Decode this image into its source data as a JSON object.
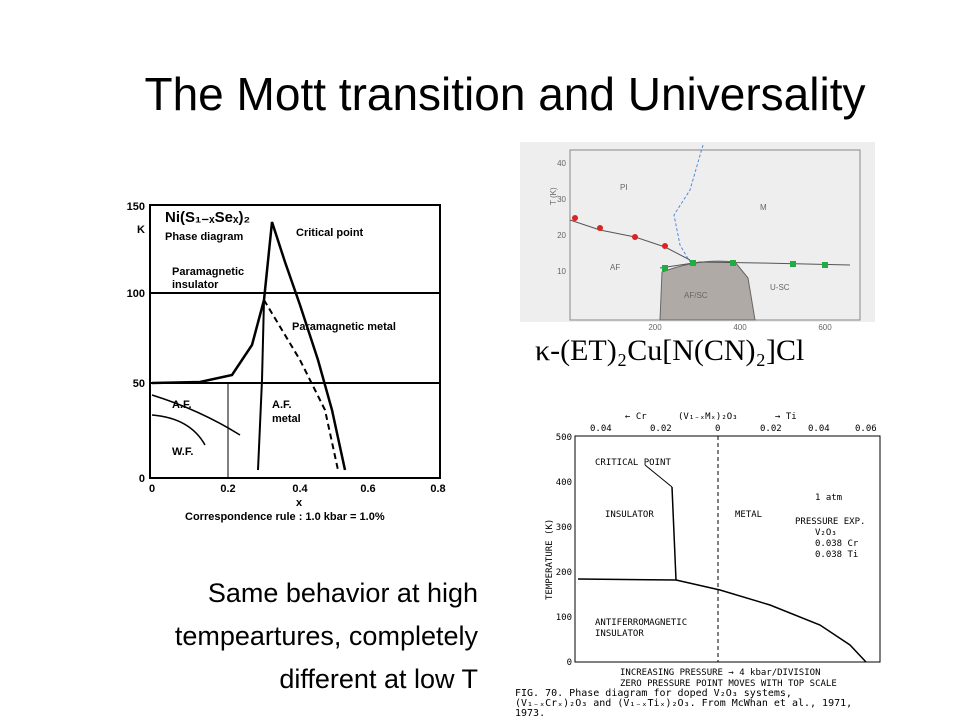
{
  "title": "The  Mott transition  and Universality",
  "caption": [
    "Same behavior at high",
    "tempeartures, completely",
    "different at low T"
  ],
  "formula": "κ-(ET)₂Cu[N(CN)₂]Cl",
  "nis2": {
    "heading": "Ni(S₁₋ₓSeₓ)₂",
    "subheading": "Phase diagram",
    "y_unit": "K",
    "yticks": [
      "0",
      "50",
      "100",
      "150"
    ],
    "xticks": [
      "0",
      "0.2",
      "0.4",
      "0.6",
      "0.8"
    ],
    "x_label": "x",
    "labels": [
      "Critical point",
      "Paramagnetic",
      "insulator",
      "Paramagnetic metal",
      "A.F.",
      "A.F.",
      "metal",
      "W.F."
    ],
    "footer": "Correspondence rule : 1.0 kbar = 1.0%"
  },
  "et": {
    "y_label": "T (K)",
    "yticks": [
      "10",
      "20",
      "30",
      "40"
    ],
    "xticks": [
      "200",
      "400",
      "600"
    ],
    "labels": [
      "PI",
      "M",
      "AF",
      "AF/SC",
      "U-SC"
    ]
  },
  "v2o3": {
    "top_axis": [
      "0.04",
      "0.02",
      "0",
      "0.02",
      "0.04",
      "0.06"
    ],
    "top_labels": [
      "← Cr",
      "(V₁₋ₓMₓ)₂O₃",
      "→ Ti"
    ],
    "y_label": "TEMPERATURE (K)",
    "yticks": [
      "500",
      "400",
      "300",
      "200",
      "100",
      "0"
    ],
    "labels": [
      "CRITICAL POINT",
      "INSULATOR",
      "METAL",
      "ANTIFERROMAGNETIC",
      "INSULATOR"
    ],
    "legend": [
      "1 atm",
      "PRESSURE EXP.",
      "V₂O₃",
      "0.038 Cr",
      "0.038 Ti"
    ],
    "bottom": [
      "INCREASING PRESSURE → 4 kbar/DIVISION",
      "ZERO PRESSURE POINT MOVES WITH TOP SCALE"
    ],
    "fig_caption": [
      "FIG. 70.  Phase diagram for doped V₂O₃ systems,",
      "(V₁₋ₓCrₓ)₂O₃ and (V₁₋ₓTiₓ)₂O₃. From McWhan et al., 1971,",
      "1973."
    ]
  }
}
